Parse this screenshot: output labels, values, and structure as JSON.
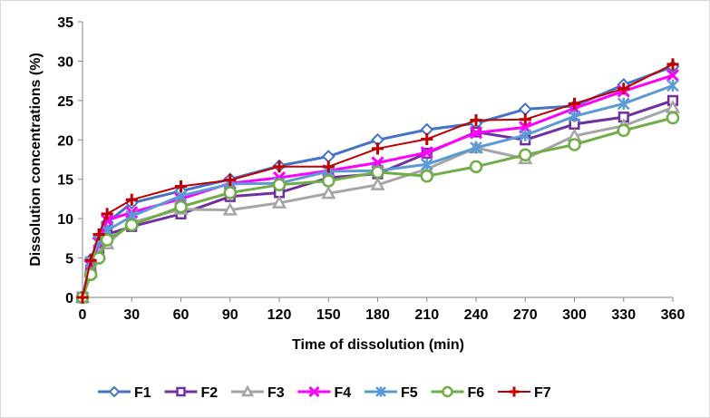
{
  "chart_data": {
    "type": "line",
    "title": "",
    "xlabel": "Time of dissolution (min)",
    "ylabel": "Dissolution concentrations (%)",
    "x": [
      0,
      5,
      10,
      15,
      30,
      60,
      90,
      120,
      150,
      180,
      210,
      240,
      270,
      300,
      330,
      360
    ],
    "xlim": [
      0,
      360
    ],
    "ylim": [
      0,
      35
    ],
    "xticks": [
      "0",
      "30",
      "60",
      "90",
      "120",
      "150",
      "180",
      "210",
      "240",
      "270",
      "300",
      "330",
      "360"
    ],
    "xtick_values": [
      0,
      30,
      60,
      90,
      120,
      150,
      180,
      210,
      240,
      270,
      300,
      330,
      360
    ],
    "yticks": [
      "0",
      "5",
      "10",
      "15",
      "20",
      "25",
      "30",
      "35"
    ],
    "ytick_values": [
      0,
      5,
      10,
      15,
      20,
      25,
      30,
      35
    ],
    "grid": false,
    "legend_position": "bottom",
    "series": [
      {
        "name": "F1",
        "color": "#4472C4",
        "marker": "diamond",
        "values": [
          0,
          4.8,
          7.5,
          9.5,
          12.0,
          13.5,
          15.0,
          16.7,
          17.9,
          20.0,
          21.3,
          22.1,
          23.9,
          24.3,
          27.0,
          29.3
        ]
      },
      {
        "name": "F2",
        "color": "#7030A0",
        "marker": "square",
        "values": [
          0,
          3.5,
          5.8,
          8.0,
          9.0,
          10.6,
          12.8,
          13.3,
          15.2,
          15.7,
          18.3,
          21.0,
          20.0,
          22.0,
          22.9,
          25.0
        ]
      },
      {
        "name": "F3",
        "color": "#A5A5A5",
        "marker": "triangle",
        "values": [
          0,
          3.2,
          5.5,
          6.8,
          9.5,
          11.2,
          11.1,
          12.0,
          13.2,
          14.3,
          16.3,
          19.0,
          17.6,
          20.5,
          21.8,
          24.1
        ]
      },
      {
        "name": "F4",
        "color": "#FF00FF",
        "marker": "x",
        "values": [
          0,
          4.0,
          7.0,
          9.8,
          10.8,
          12.5,
          14.5,
          15.2,
          16.1,
          17.1,
          18.4,
          20.9,
          21.6,
          24.0,
          26.2,
          28.2
        ]
      },
      {
        "name": "F5",
        "color": "#5B9BD5",
        "marker": "star",
        "values": [
          0,
          4.5,
          7.2,
          8.5,
          10.3,
          12.9,
          14.4,
          14.5,
          16.0,
          16.1,
          16.9,
          19.0,
          20.6,
          23.0,
          24.6,
          26.9
        ]
      },
      {
        "name": "F6",
        "color": "#70AD47",
        "marker": "circle",
        "values": [
          0,
          2.9,
          5.0,
          7.3,
          9.2,
          11.5,
          13.3,
          14.3,
          14.8,
          15.9,
          15.4,
          16.6,
          18.1,
          19.4,
          21.2,
          22.8
        ]
      },
      {
        "name": "F7",
        "color": "#C00000",
        "marker": "plus",
        "values": [
          0,
          4.7,
          8.0,
          10.6,
          12.4,
          14.1,
          14.9,
          16.6,
          16.6,
          18.9,
          20.1,
          22.5,
          22.6,
          24.6,
          26.5,
          29.6
        ]
      }
    ]
  }
}
